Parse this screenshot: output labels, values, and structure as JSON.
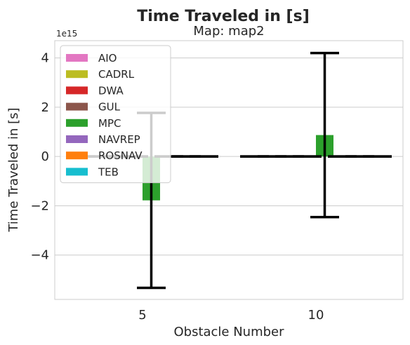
{
  "chart_data": {
    "type": "bar",
    "title": "Time Traveled in [s]",
    "subtitle": "Map: map2",
    "xlabel": "Obstacle Number",
    "ylabel": "Time Traveled in [s]",
    "y_offset_label": "1e15",
    "ylim": [
      -5.8,
      4.7
    ],
    "yticks": [
      -4,
      -2,
      0,
      2,
      4
    ],
    "ytick_labels": [
      "−4",
      "−2",
      "0",
      "2",
      "4"
    ],
    "categories": [
      "5",
      "10"
    ],
    "grid": "horizontal",
    "legend_position": "top-left",
    "series": [
      {
        "name": "AIO",
        "color": "#e377c2",
        "values": [
          0,
          0
        ],
        "errors": [
          0,
          0
        ]
      },
      {
        "name": "CADRL",
        "color": "#bcbd22",
        "values": [
          0,
          0
        ],
        "errors": [
          0,
          0
        ]
      },
      {
        "name": "DWA",
        "color": "#d62728",
        "values": [
          0,
          0
        ],
        "errors": [
          0,
          0
        ]
      },
      {
        "name": "GUL",
        "color": "#8c564b",
        "values": [
          0,
          0
        ],
        "errors": [
          0,
          0
        ]
      },
      {
        "name": "MPC",
        "color": "#2ca02c",
        "values": [
          -1.78,
          0.87
        ],
        "errors": [
          3.55,
          3.33
        ]
      },
      {
        "name": "NAVREP",
        "color": "#9467bd",
        "values": [
          0,
          0
        ],
        "errors": [
          0,
          0
        ]
      },
      {
        "name": "ROSNAV",
        "color": "#ff7f0e",
        "values": [
          0,
          0
        ],
        "errors": [
          0,
          0
        ]
      },
      {
        "name": "TEB",
        "color": "#17becf",
        "values": [
          0,
          0
        ],
        "errors": [
          0,
          0
        ]
      }
    ]
  }
}
